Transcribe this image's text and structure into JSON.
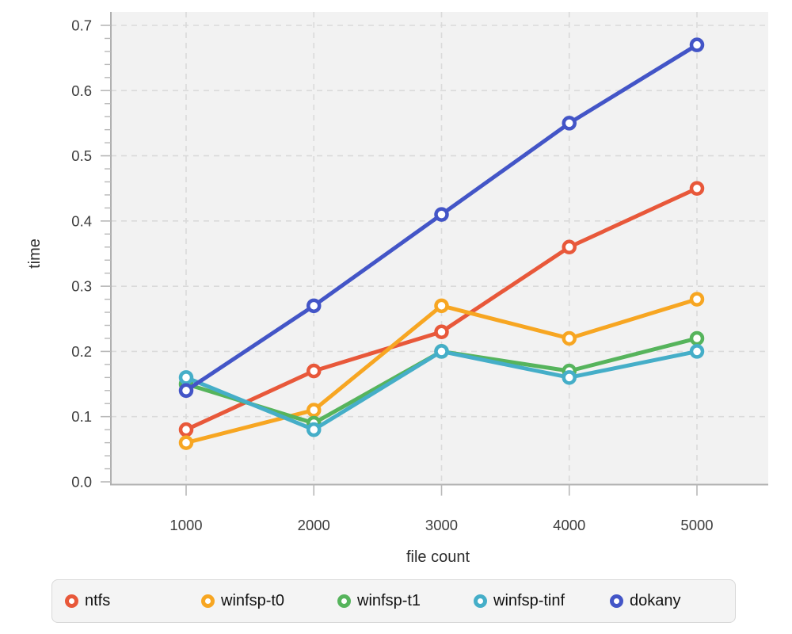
{
  "chart_data": {
    "type": "line",
    "title": "",
    "xlabel": "file count",
    "ylabel": "time",
    "x": [
      1000,
      2000,
      3000,
      4000,
      5000
    ],
    "xticks": [
      1000,
      2000,
      3000,
      4000,
      5000
    ],
    "yticks": [
      0.0,
      0.1,
      0.2,
      0.3,
      0.4,
      0.5,
      0.6,
      0.7
    ],
    "ylim": [
      0.0,
      0.7
    ],
    "xlim": [
      410,
      5560
    ],
    "y_minor_step": 0.02,
    "grid": true,
    "grid_style": "dashed",
    "legend_position": "bottom",
    "series": [
      {
        "name": "ntfs",
        "color": "#e8583a",
        "values": [
          0.08,
          0.17,
          0.23,
          0.36,
          0.45
        ]
      },
      {
        "name": "winfsp-t0",
        "color": "#f7a622",
        "values": [
          0.06,
          0.11,
          0.27,
          0.22,
          0.28
        ]
      },
      {
        "name": "winfsp-t1",
        "color": "#56b45c",
        "values": [
          0.15,
          0.09,
          0.2,
          0.17,
          0.22
        ]
      },
      {
        "name": "winfsp-tinf",
        "color": "#45aec8",
        "values": [
          0.16,
          0.08,
          0.2,
          0.16,
          0.2
        ]
      },
      {
        "name": "dokany",
        "color": "#4355c7",
        "values": [
          0.14,
          0.27,
          0.41,
          0.55,
          0.67
        ]
      }
    ]
  },
  "style_colors": {
    "plot_bg": "#f2f2f2",
    "grid": "#dadada",
    "axis": "#b0b0b0",
    "tick": "#b8b8b8",
    "tick_label": "#3d3d3d",
    "axis_label": "#2e2e2e",
    "legend_bg": "#f4f4f4",
    "legend_border": "#d8d8d8",
    "legend_text": "#111111"
  }
}
